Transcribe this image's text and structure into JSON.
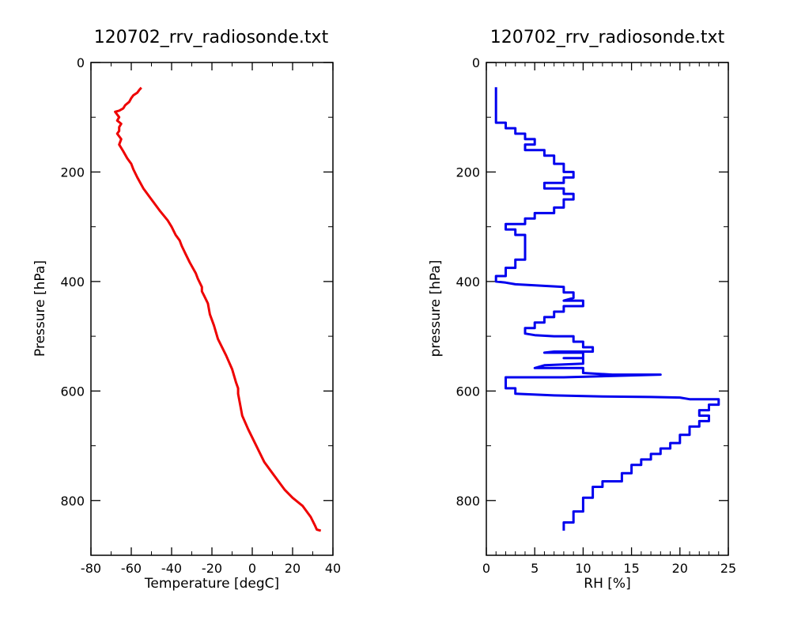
{
  "chart_data": [
    {
      "type": "line",
      "title": "120702_rrv_radiosonde.txt",
      "xlabel": "Temperature [degC]",
      "ylabel": "Pressure [hPa]",
      "xlim": [
        -80,
        40
      ],
      "ylim": [
        900,
        0
      ],
      "y_inverted": true,
      "x_ticks": [
        "-80",
        "-60",
        "-40",
        "-20",
        "0",
        "20",
        "40"
      ],
      "y_ticks": [
        "0",
        "200",
        "400",
        "600",
        "800"
      ],
      "grid": false,
      "series": [
        {
          "color": "#ee0000",
          "points": [
            [
              34,
              855
            ],
            [
              32,
              853
            ],
            [
              31,
              845
            ],
            [
              29,
              830
            ],
            [
              25,
              810
            ],
            [
              20,
              795
            ],
            [
              16,
              780
            ],
            [
              14,
              770
            ],
            [
              10,
              750
            ],
            [
              6,
              730
            ],
            [
              2,
              700
            ],
            [
              -2,
              670
            ],
            [
              -5,
              645
            ],
            [
              -6,
              625
            ],
            [
              -7,
              605
            ],
            [
              -7,
              595
            ],
            [
              -8,
              585
            ],
            [
              -10,
              560
            ],
            [
              -13,
              535
            ],
            [
              -17,
              505
            ],
            [
              -19,
              480
            ],
            [
              -21,
              460
            ],
            [
              -22,
              440
            ],
            [
              -24,
              425
            ],
            [
              -25,
              418
            ],
            [
              -25,
              410
            ],
            [
              -27,
              395
            ],
            [
              -28,
              385
            ],
            [
              -31,
              365
            ],
            [
              -33,
              350
            ],
            [
              -35,
              335
            ],
            [
              -36,
              325
            ],
            [
              -38,
              315
            ],
            [
              -40,
              300
            ],
            [
              -42,
              288
            ],
            [
              -46,
              270
            ],
            [
              -50,
              250
            ],
            [
              -54,
              230
            ],
            [
              -57,
              210
            ],
            [
              -59,
              195
            ],
            [
              -60,
              185
            ],
            [
              -62,
              175
            ],
            [
              -64,
              162
            ],
            [
              -66,
              150
            ],
            [
              -65,
              140
            ],
            [
              -67,
              130
            ],
            [
              -66,
              125
            ],
            [
              -66,
              118
            ],
            [
              -65,
              112
            ],
            [
              -67,
              106
            ],
            [
              -66,
              100
            ],
            [
              -67,
              95
            ],
            [
              -68,
              90
            ],
            [
              -66,
              88
            ],
            [
              -64,
              84
            ],
            [
              -63,
              78
            ],
            [
              -61,
              72
            ],
            [
              -60,
              65
            ],
            [
              -59,
              60
            ],
            [
              -57,
              55
            ],
            [
              -56,
              50
            ],
            [
              -55,
              46
            ]
          ]
        }
      ]
    },
    {
      "type": "line",
      "title": "120702_rrv_radiosonde.txt",
      "xlabel": "RH [%]",
      "ylabel": "pressure [hPa]",
      "xlim": [
        0,
        25
      ],
      "ylim": [
        900,
        0
      ],
      "y_inverted": true,
      "x_ticks": [
        "0",
        "5",
        "10",
        "15",
        "20",
        "25"
      ],
      "y_ticks": [
        "0",
        "200",
        "400",
        "600",
        "800"
      ],
      "grid": false,
      "series": [
        {
          "color": "#0000ee",
          "points": [
            [
              8,
              855
            ],
            [
              8,
              840
            ],
            [
              9,
              840
            ],
            [
              9,
              820
            ],
            [
              10,
              820
            ],
            [
              10,
              795
            ],
            [
              11,
              795
            ],
            [
              11,
              775
            ],
            [
              12,
              775
            ],
            [
              12,
              765
            ],
            [
              14,
              765
            ],
            [
              14,
              750
            ],
            [
              15,
              750
            ],
            [
              15,
              735
            ],
            [
              16,
              735
            ],
            [
              16,
              725
            ],
            [
              17,
              725
            ],
            [
              17,
              715
            ],
            [
              18,
              715
            ],
            [
              18,
              705
            ],
            [
              19,
              705
            ],
            [
              19,
              695
            ],
            [
              20,
              695
            ],
            [
              20,
              680
            ],
            [
              21,
              680
            ],
            [
              21,
              665
            ],
            [
              22,
              665
            ],
            [
              22,
              655
            ],
            [
              23,
              655
            ],
            [
              23,
              645
            ],
            [
              22,
              645
            ],
            [
              22,
              635
            ],
            [
              23,
              635
            ],
            [
              23,
              625
            ],
            [
              24,
              625
            ],
            [
              24,
              615
            ],
            [
              21,
              615
            ],
            [
              20,
              612
            ],
            [
              17,
              611
            ],
            [
              12,
              610
            ],
            [
              7,
              608
            ],
            [
              3,
              605
            ],
            [
              3,
              595
            ],
            [
              2,
              595
            ],
            [
              2,
              575
            ],
            [
              8,
              575
            ],
            [
              18,
              570
            ],
            [
              13,
              570
            ],
            [
              10,
              567
            ],
            [
              10,
              558
            ],
            [
              5,
              558
            ],
            [
              6,
              553
            ],
            [
              10,
              550
            ],
            [
              10,
              540
            ],
            [
              8,
              540
            ],
            [
              10,
              540
            ],
            [
              10,
              530
            ],
            [
              6,
              530
            ],
            [
              7,
              528
            ],
            [
              11,
              528
            ],
            [
              11,
              520
            ],
            [
              10,
              520
            ],
            [
              10,
              510
            ],
            [
              9,
              510
            ],
            [
              9,
              500
            ],
            [
              7,
              500
            ],
            [
              5,
              498
            ],
            [
              4,
              495
            ],
            [
              4,
              485
            ],
            [
              5,
              485
            ],
            [
              5,
              475
            ],
            [
              6,
              475
            ],
            [
              6,
              465
            ],
            [
              7,
              465
            ],
            [
              7,
              455
            ],
            [
              8,
              455
            ],
            [
              8,
              445
            ],
            [
              10,
              445
            ],
            [
              10,
              435
            ],
            [
              8,
              435
            ],
            [
              9,
              430
            ],
            [
              9,
              420
            ],
            [
              8,
              420
            ],
            [
              8,
              410
            ],
            [
              3,
              405
            ],
            [
              2,
              402
            ],
            [
              1,
              400
            ],
            [
              1,
              390
            ],
            [
              2,
              390
            ],
            [
              2,
              375
            ],
            [
              3,
              375
            ],
            [
              3,
              360
            ],
            [
              4,
              360
            ],
            [
              4,
              345
            ],
            [
              4,
              330
            ],
            [
              4,
              315
            ],
            [
              3,
              315
            ],
            [
              3,
              305
            ],
            [
              2,
              305
            ],
            [
              2,
              295
            ],
            [
              4,
              295
            ],
            [
              4,
              285
            ],
            [
              5,
              285
            ],
            [
              5,
              275
            ],
            [
              7,
              275
            ],
            [
              7,
              265
            ],
            [
              8,
              265
            ],
            [
              8,
              250
            ],
            [
              9,
              250
            ],
            [
              9,
              240
            ],
            [
              8,
              240
            ],
            [
              8,
              230
            ],
            [
              6,
              230
            ],
            [
              6,
              220
            ],
            [
              8,
              220
            ],
            [
              8,
              210
            ],
            [
              9,
              210
            ],
            [
              9,
              200
            ],
            [
              8,
              200
            ],
            [
              8,
              185
            ],
            [
              7,
              185
            ],
            [
              7,
              170
            ],
            [
              6,
              170
            ],
            [
              6,
              160
            ],
            [
              4,
              160
            ],
            [
              4,
              150
            ],
            [
              5,
              150
            ],
            [
              5,
              140
            ],
            [
              4,
              140
            ],
            [
              4,
              130
            ],
            [
              3,
              130
            ],
            [
              3,
              120
            ],
            [
              2,
              120
            ],
            [
              2,
              110
            ],
            [
              1,
              110
            ],
            [
              1,
              100
            ],
            [
              1,
              80
            ],
            [
              1,
              60
            ],
            [
              1,
              45
            ]
          ]
        }
      ]
    }
  ]
}
